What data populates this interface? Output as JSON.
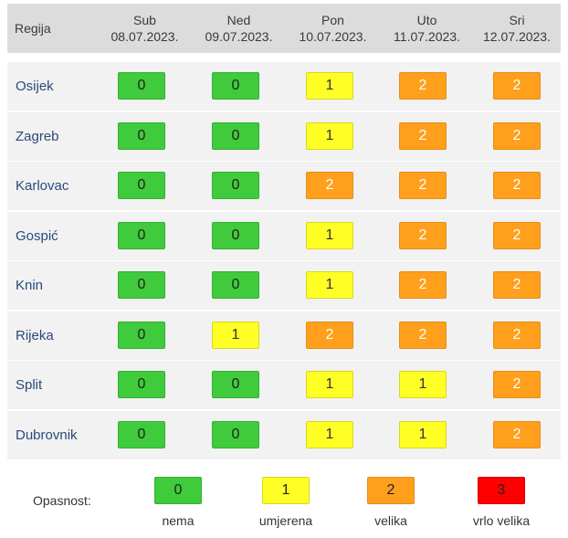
{
  "header": {
    "region_label": "Regija",
    "days": [
      {
        "name": "Sub",
        "date": "08.07.2023."
      },
      {
        "name": "Ned",
        "date": "09.07.2023."
      },
      {
        "name": "Pon",
        "date": "10.07.2023."
      },
      {
        "name": "Uto",
        "date": "11.07.2023."
      },
      {
        "name": "Sri",
        "date": "12.07.2023."
      }
    ]
  },
  "rows": [
    {
      "region": "Osijek",
      "values": [
        "0",
        "0",
        "1",
        "2",
        "2"
      ]
    },
    {
      "region": "Zagreb",
      "values": [
        "0",
        "0",
        "1",
        "2",
        "2"
      ]
    },
    {
      "region": "Karlovac",
      "values": [
        "0",
        "0",
        "2",
        "2",
        "2"
      ]
    },
    {
      "region": "Gospić",
      "values": [
        "0",
        "0",
        "1",
        "2",
        "2"
      ]
    },
    {
      "region": "Knin",
      "values": [
        "0",
        "0",
        "1",
        "2",
        "2"
      ]
    },
    {
      "region": "Rijeka",
      "values": [
        "0",
        "1",
        "2",
        "2",
        "2"
      ]
    },
    {
      "region": "Split",
      "values": [
        "0",
        "0",
        "1",
        "1",
        "2"
      ]
    },
    {
      "region": "Dubrovnik",
      "values": [
        "0",
        "0",
        "1",
        "1",
        "2"
      ]
    }
  ],
  "legend": {
    "title": "Opasnost:",
    "items": [
      {
        "value": "0",
        "label": "nema"
      },
      {
        "value": "1",
        "label": "umjerena"
      },
      {
        "value": "2",
        "label": "velika"
      },
      {
        "value": "3",
        "label": "vrlo velika"
      }
    ]
  },
  "colors": {
    "level_0": "#3fcb3c",
    "level_1": "#ffff26",
    "level_2": "#ff9f1c",
    "level_3": "#ff0000",
    "header_bg": "#dcdcdc",
    "row_bg": "#f2f2f2"
  }
}
